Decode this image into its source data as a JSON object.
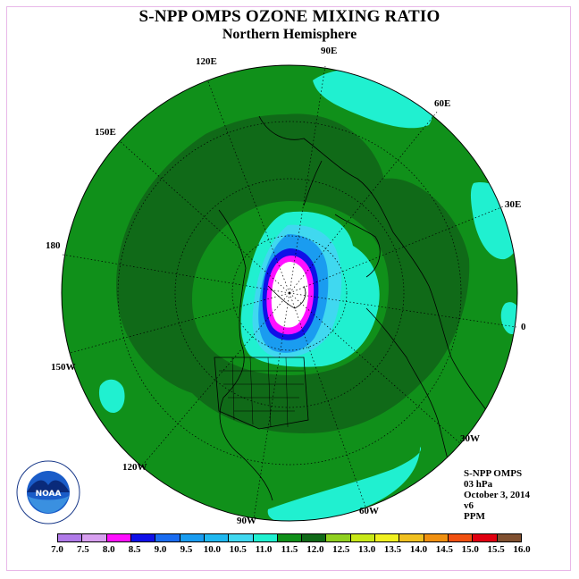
{
  "title": "S-NPP OMPS OZONE MIXING RATIO",
  "subtitle": "Northern Hemisphere",
  "longitude_labels": [
    "90E",
    "60E",
    "30E",
    "0",
    "30W",
    "60W",
    "90W",
    "120W",
    "150W",
    "180",
    "150E",
    "120E"
  ],
  "info": {
    "instrument": "S-NPP OMPS",
    "pressure": "03 hPa",
    "date": "October 3, 2014",
    "version": "v6",
    "units": "PPM"
  },
  "colorbar": {
    "ticks": [
      "7.0",
      "7.5",
      "8.0",
      "8.5",
      "9.0",
      "9.5",
      "10.0",
      "10.5",
      "11.0",
      "11.5",
      "12.0",
      "12.5",
      "13.0",
      "13.5",
      "14.0",
      "14.5",
      "15.0",
      "15.5",
      "16.0"
    ],
    "colors": [
      "#b07ae8",
      "#d8a0f0",
      "#ff10ff",
      "#1010e8",
      "#1a6cf0",
      "#1a9cf0",
      "#20b8f0",
      "#40d8f0",
      "#20f0d0",
      "#10901a",
      "#106a18",
      "#90d020",
      "#c8e818",
      "#f0f020",
      "#f0c020",
      "#f09010",
      "#f05010",
      "#e00010",
      "#805030"
    ]
  },
  "logo": {
    "text": "NOAA",
    "ring_text": "NATIONAL OCEANIC AND ATMOSPHERIC ADMINISTRATION · U.S. DEPARTMENT OF COMMERCE"
  }
}
